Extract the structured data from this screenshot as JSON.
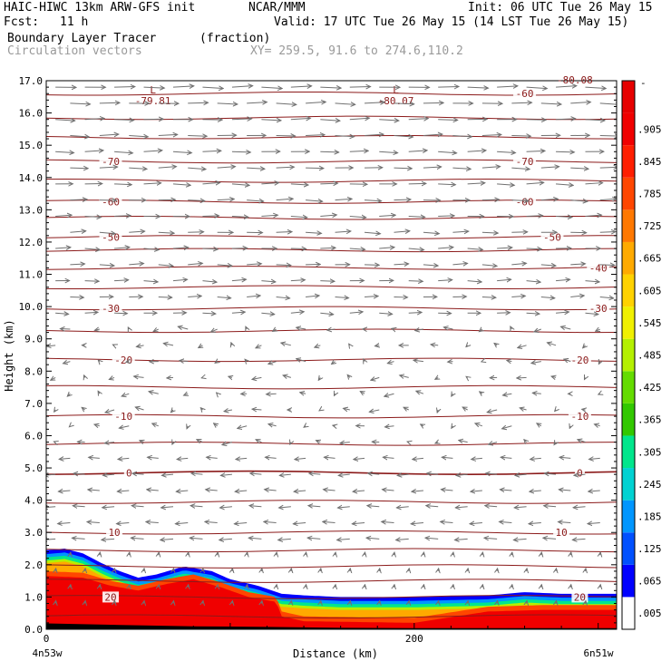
{
  "header": {
    "model": "HAIC-HIWC 13km ARW-GFS init",
    "org": "NCAR/MMM",
    "init": "Init: 06 UTC Tue 26 May 15",
    "fcst_label": "Fcst:",
    "fcst_value": "11 h",
    "valid": "Valid: 17 UTC Tue 26 May 15 (14 LST Tue 26 May 15)",
    "field_name": "Boundary Layer Tracer",
    "field_unit": "(fraction)",
    "vector_name": "Circulation vectors",
    "xy": "XY= 259.5, 91.6 to 274.6,110.2"
  },
  "chart_data": {
    "type": "heatmap",
    "xlabel": "Distance (km)",
    "ylabel": "Height (km)",
    "xlim": [
      0,
      310
    ],
    "ylim": [
      0,
      17
    ],
    "x_ticks": [
      0,
      200
    ],
    "x_end_labels": {
      "left": "4n53w",
      "right": "6n51w"
    },
    "y_ticks": [
      "0.0",
      "1.0",
      "2.0",
      "3.0",
      "4.0",
      "5.0",
      "6.0",
      "7.0",
      "8.0",
      "9.0",
      "10.0",
      "11.0",
      "12.0",
      "13.0",
      "14.0",
      "15.0",
      "16.0",
      "17.0"
    ],
    "terrain_km": [
      [
        0,
        0.17
      ],
      [
        40,
        0.12
      ],
      [
        80,
        0.08
      ],
      [
        120,
        0.06
      ],
      [
        160,
        0.03
      ],
      [
        200,
        0.02
      ],
      [
        240,
        0.02
      ],
      [
        280,
        0.02
      ],
      [
        310,
        0.02
      ]
    ],
    "tracer_top_km": [
      [
        0,
        2.45
      ],
      [
        10,
        2.5
      ],
      [
        20,
        2.35
      ],
      [
        30,
        2.05
      ],
      [
        40,
        1.8
      ],
      [
        50,
        1.6
      ],
      [
        60,
        1.7
      ],
      [
        75,
        1.95
      ],
      [
        90,
        1.8
      ],
      [
        100,
        1.55
      ],
      [
        115,
        1.35
      ],
      [
        128,
        1.1
      ],
      [
        140,
        1.05
      ],
      [
        160,
        1.0
      ],
      [
        200,
        1.0
      ],
      [
        240,
        1.05
      ],
      [
        260,
        1.15
      ],
      [
        280,
        1.1
      ],
      [
        310,
        1.1
      ]
    ],
    "tracer_core_top_km": [
      [
        0,
        1.8
      ],
      [
        20,
        1.75
      ],
      [
        35,
        1.5
      ],
      [
        50,
        1.35
      ],
      [
        65,
        1.55
      ],
      [
        80,
        1.7
      ],
      [
        95,
        1.45
      ],
      [
        110,
        1.15
      ],
      [
        125,
        1.0
      ],
      [
        128,
        0.55
      ],
      [
        140,
        0.4
      ],
      [
        200,
        0.35
      ],
      [
        240,
        0.7
      ],
      [
        270,
        0.75
      ],
      [
        310,
        0.75
      ]
    ],
    "colorbar": {
      "labels": [
        ".005",
        ".065",
        ".125",
        ".185",
        ".245",
        ".305",
        ".365",
        ".425",
        ".485",
        ".545",
        ".605",
        ".665",
        ".725",
        ".785",
        ".845",
        ".905"
      ],
      "colors": [
        "#ffffff",
        "#0000ff",
        "#0050ff",
        "#0096ff",
        "#00d2d2",
        "#00e68c",
        "#32c800",
        "#64dc00",
        "#b4f000",
        "#f0f000",
        "#ffd200",
        "#ffaa00",
        "#ff7800",
        "#ff4600",
        "#ff1e00",
        "#f00000",
        "#e60000"
      ],
      "top_label": "-"
    },
    "isotherms": [
      {
        "value": "20",
        "height_km": 1.0,
        "label_x": [
          35,
          290
        ]
      },
      {
        "value": "10",
        "height_km": 3.0,
        "label_x": [
          37,
          280
        ]
      },
      {
        "value": "0",
        "height_km": 4.85,
        "label_x": [
          45,
          290
        ]
      },
      {
        "value": "-10",
        "height_km": 6.6,
        "label_x": [
          42,
          290
        ]
      },
      {
        "value": "-20",
        "height_km": 8.35,
        "label_x": [
          42,
          290
        ]
      },
      {
        "value": "-30",
        "height_km": 9.95,
        "label_x": [
          35,
          300
        ]
      },
      {
        "value": "-40",
        "height_km": 11.2,
        "label_x": [
          300
        ]
      },
      {
        "value": "-50",
        "height_km": 12.15,
        "label_x": [
          35,
          275
        ]
      },
      {
        "value": "-60",
        "height_km": 13.25,
        "label_x": [
          35,
          260
        ]
      },
      {
        "value": "-70",
        "height_km": 14.5,
        "label_x": [
          35,
          260
        ]
      },
      {
        "value": "-60",
        "height_km": 16.6,
        "label_x": [
          260
        ]
      }
    ],
    "extra_isotherm_heights_km": [
      0.4,
      1.5,
      1.95,
      2.45,
      3.95,
      5.75,
      7.5,
      9.25,
      10.6,
      11.75,
      12.75,
      13.9,
      15.25,
      15.85
    ],
    "lows": [
      {
        "mark": "L",
        "value": "-79.81",
        "x_km": 58,
        "z_km": 16.55
      },
      {
        "mark": "L",
        "value": "-80.07",
        "x_km": 190,
        "z_km": 16.55
      }
    ],
    "corner_label": "-80.08"
  }
}
